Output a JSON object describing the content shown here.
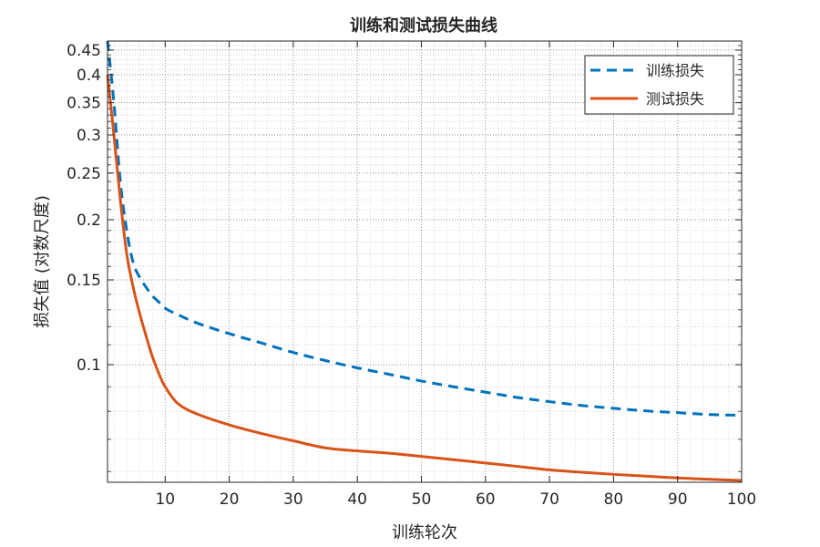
{
  "chart_data": {
    "type": "line",
    "title": "训练和测试损失曲线",
    "xlabel": "训练轮次",
    "ylabel": "损失值 (对数尺度)",
    "xlim": [
      1,
      100
    ],
    "ylim": [
      0.057,
      0.47
    ],
    "yscale": "log",
    "grid": true,
    "minor_grid": true,
    "legend_position": "top-right",
    "xticks": [
      10,
      20,
      30,
      40,
      50,
      60,
      70,
      80,
      90,
      100
    ],
    "yticks": [
      0.1,
      0.15,
      0.2,
      0.25,
      0.3,
      0.35,
      0.4,
      0.45
    ],
    "x": [
      1,
      2,
      3,
      4,
      5,
      6,
      7,
      8,
      9,
      10,
      12,
      15,
      20,
      25,
      30,
      35,
      40,
      45,
      50,
      55,
      60,
      65,
      70,
      75,
      80,
      85,
      90,
      95,
      100
    ],
    "series": [
      {
        "name": "训练损失",
        "color": "#0072bd",
        "dash": "dashed",
        "values": [
          0.47,
          0.35,
          0.24,
          0.19,
          0.163,
          0.152,
          0.145,
          0.139,
          0.135,
          0.131,
          0.127,
          0.122,
          0.116,
          0.111,
          0.106,
          0.102,
          0.0985,
          0.0955,
          0.0925,
          0.09,
          0.0877,
          0.0855,
          0.0838,
          0.0823,
          0.0812,
          0.0802,
          0.0795,
          0.0788,
          0.0785
        ]
      },
      {
        "name": "测试损失",
        "color": "#d95319",
        "dash": "solid",
        "values": [
          0.4,
          0.3,
          0.22,
          0.17,
          0.145,
          0.128,
          0.115,
          0.104,
          0.096,
          0.09,
          0.083,
          0.079,
          0.075,
          0.072,
          0.0695,
          0.0672,
          0.0662,
          0.0655,
          0.0645,
          0.0635,
          0.0625,
          0.0615,
          0.0605,
          0.0598,
          0.0592,
          0.0587,
          0.0582,
          0.0578,
          0.0575
        ]
      }
    ]
  }
}
